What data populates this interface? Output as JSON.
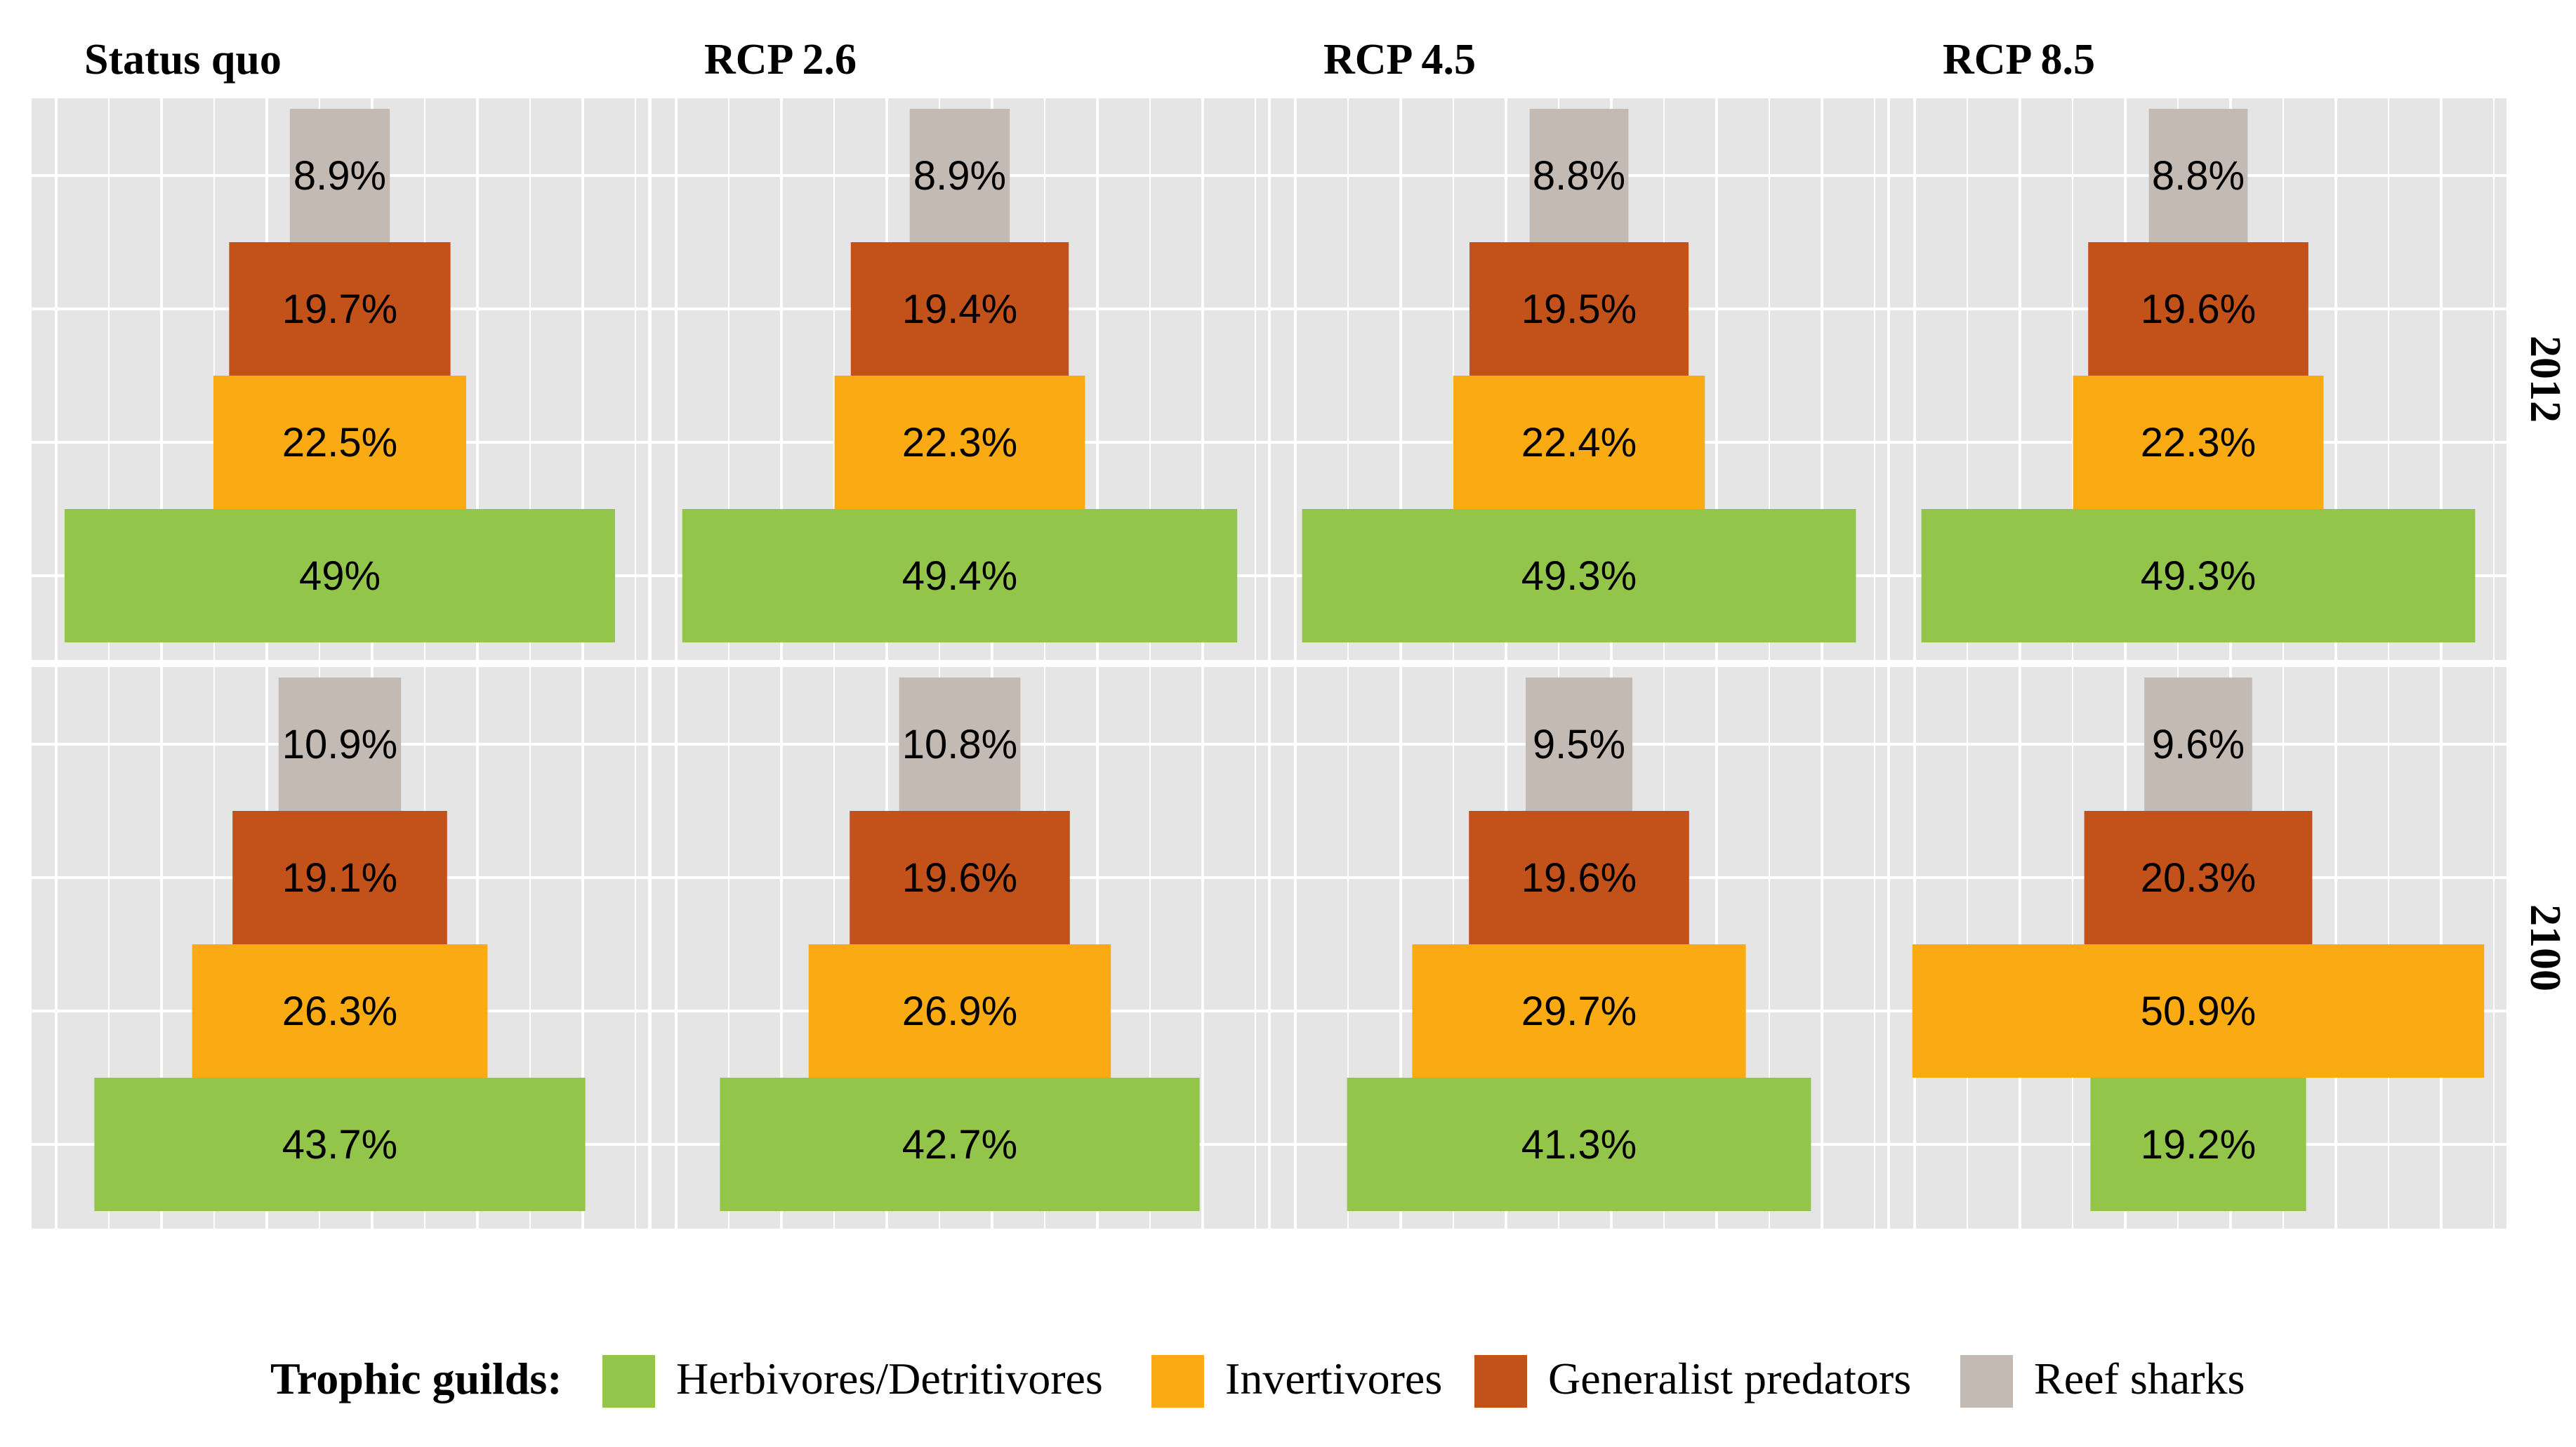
{
  "chart_data": {
    "type": "bar",
    "subtype": "trophic pyramid (centered horizontal bars), faceted",
    "columns": [
      "Status quo",
      "RCP 2.6",
      "RCP 4.5",
      "RCP 8.5"
    ],
    "rows": [
      "2012",
      "2100"
    ],
    "guilds": [
      "Herbivores/Detritivores",
      "Invertivores",
      "Generalist predators",
      "Reef sharks"
    ],
    "colors": {
      "Herbivores/Detritivores": "#92c54a",
      "Invertivores": "#faaa12",
      "Generalist predators": "#c2511a",
      "Reef sharks": "#c4bab4",
      "panel_bg": "#e5e5e5",
      "grid": "#ffffff"
    },
    "grid": true,
    "legend_position": "bottom",
    "panels": [
      {
        "row": "2012",
        "column": "Status quo",
        "values": [
          49,
          22.5,
          19.7,
          8.9
        ],
        "labels": [
          "49%",
          "22.5%",
          "19.7%",
          "8.9%"
        ]
      },
      {
        "row": "2012",
        "column": "RCP 2.6",
        "values": [
          49.4,
          22.3,
          19.4,
          8.9
        ],
        "labels": [
          "49.4%",
          "22.3%",
          "19.4%",
          "8.9%"
        ]
      },
      {
        "row": "2012",
        "column": "RCP 4.5",
        "values": [
          49.3,
          22.4,
          19.5,
          8.8
        ],
        "labels": [
          "49.3%",
          "22.4%",
          "19.5%",
          "8.8%"
        ]
      },
      {
        "row": "2012",
        "column": "RCP 8.5",
        "values": [
          49.3,
          22.3,
          19.6,
          8.8
        ],
        "labels": [
          "49.3%",
          "22.3%",
          "19.6%",
          "8.8%"
        ]
      },
      {
        "row": "2100",
        "column": "Status quo",
        "values": [
          43.7,
          26.3,
          19.1,
          10.9
        ],
        "labels": [
          "43.7%",
          "26.3%",
          "19.1%",
          "10.9%"
        ]
      },
      {
        "row": "2100",
        "column": "RCP 2.6",
        "values": [
          42.7,
          26.9,
          19.6,
          10.8
        ],
        "labels": [
          "42.7%",
          "26.9%",
          "19.6%",
          "10.8%"
        ]
      },
      {
        "row": "2100",
        "column": "RCP 4.5",
        "values": [
          41.3,
          29.7,
          19.6,
          9.5
        ],
        "labels": [
          "41.3%",
          "29.7%",
          "19.6%",
          "9.5%"
        ]
      },
      {
        "row": "2100",
        "column": "RCP 8.5",
        "values": [
          19.2,
          50.9,
          20.3,
          9.6
        ],
        "labels": [
          "19.2%",
          "50.9%",
          "20.3%",
          "9.6%"
        ]
      }
    ]
  },
  "legend": {
    "title": "Trophic guilds:",
    "items": [
      "Herbivores/Detritivores",
      "Invertivores",
      "Generalist predators",
      "Reef sharks"
    ]
  }
}
